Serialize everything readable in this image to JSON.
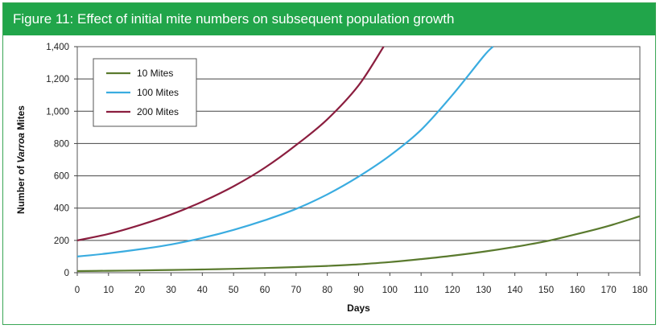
{
  "header": {
    "title": "Figure 11:  Effect of initial mite numbers on subsequent population growth"
  },
  "colors": {
    "header_bg": "#21a54a",
    "series_10": "#5a7a2e",
    "series_100": "#3aace0",
    "series_200": "#8b1e3f"
  },
  "chart_data": {
    "type": "line",
    "title": "Effect of initial mite numbers on subsequent population growth",
    "xlabel": "Days",
    "ylabel_prefix": "Number of ",
    "ylabel_italic": "Varroa",
    "ylabel_suffix": " Mites",
    "xlim": [
      0,
      180
    ],
    "ylim": [
      0,
      1400
    ],
    "x_ticks": [
      "0",
      "10",
      "20",
      "30",
      "40",
      "50",
      "60",
      "70",
      "80",
      "90",
      "100",
      "110",
      "120",
      "130",
      "140",
      "150",
      "160",
      "170",
      "180"
    ],
    "y_ticks": [
      "0",
      "200",
      "400",
      "600",
      "800",
      "1,000",
      "1,200",
      "1,400"
    ],
    "grid": "horizontal",
    "legend_position": "top-left",
    "series": [
      {
        "name": "10 Mites",
        "color": "#5a7a2e",
        "x": [
          0,
          10,
          20,
          30,
          40,
          50,
          60,
          70,
          80,
          90,
          100,
          110,
          120,
          130,
          140,
          150,
          160,
          170,
          180
        ],
        "y": [
          10,
          12,
          14,
          17,
          20,
          24,
          29,
          35,
          42,
          52,
          66,
          84,
          105,
          130,
          160,
          195,
          240,
          290,
          350
        ]
      },
      {
        "name": "100 Mites",
        "color": "#3aace0",
        "x": [
          0,
          10,
          20,
          30,
          40,
          50,
          60,
          70,
          80,
          90,
          100,
          110,
          120,
          130,
          133
        ],
        "y": [
          100,
          120,
          145,
          175,
          215,
          265,
          325,
          395,
          485,
          595,
          725,
          885,
          1100,
          1340,
          1400
        ]
      },
      {
        "name": "200 Mites",
        "color": "#8b1e3f",
        "x": [
          0,
          10,
          20,
          30,
          40,
          50,
          60,
          70,
          80,
          90,
          98
        ],
        "y": [
          200,
          240,
          295,
          360,
          440,
          535,
          650,
          790,
          950,
          1160,
          1400
        ]
      }
    ]
  }
}
